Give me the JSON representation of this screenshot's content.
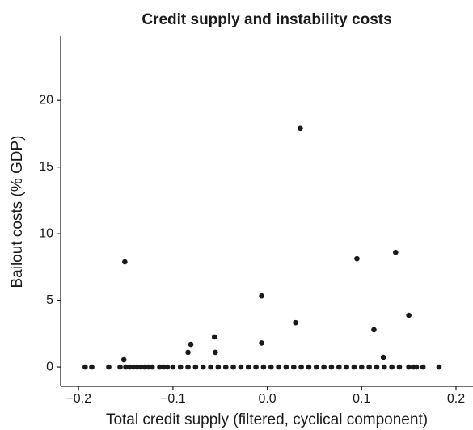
{
  "chart_data": {
    "type": "scatter",
    "title": "Credit supply and instability costs",
    "x_label": "Total credit supply (filtered, cyclical component)",
    "y_label": "Bailout costs (% GDP)",
    "color": "#1a1a1a",
    "xlim": [
      -0.219,
      0.218
    ],
    "ylim": [
      -1.45,
      24.8
    ],
    "xticks": [
      {
        "value": -0.2,
        "label": "−0.2"
      },
      {
        "value": -0.1,
        "label": "−0.1"
      },
      {
        "value": 0,
        "label": "0.0"
      },
      0.1,
      0.2
    ],
    "yticks": [
      0,
      5,
      10,
      15,
      20
    ],
    "x": [
      -0.151,
      -0.152,
      -0.084,
      -0.081,
      -0.056,
      -0.055,
      -0.006,
      -0.006,
      0.03,
      0.035,
      0.095,
      0.136,
      0.15,
      0.113,
      0.123,
      -0.193,
      -0.186,
      -0.168,
      -0.156,
      -0.15,
      -0.146,
      -0.142,
      -0.138,
      -0.134,
      -0.13,
      -0.126,
      -0.122,
      -0.114,
      -0.11,
      -0.106,
      -0.1,
      -0.092,
      -0.084,
      -0.076,
      -0.068,
      -0.06,
      -0.052,
      -0.044,
      -0.036,
      -0.028,
      -0.02,
      -0.012,
      -0.004,
      0.004,
      0.012,
      0.02,
      0.028,
      0.036,
      0.044,
      0.052,
      0.06,
      0.068,
      0.076,
      0.084,
      0.092,
      0.1,
      0.108,
      0.116,
      0.124,
      0.132,
      0.14,
      0.15,
      0.155,
      0.158,
      0.165,
      0.182
    ],
    "values": [
      7.88,
      0.55,
      1.1,
      1.7,
      2.25,
      1.1,
      5.33,
      1.8,
      3.33,
      17.9,
      8.12,
      8.6,
      3.88,
      2.8,
      0.73,
      0,
      0,
      0,
      0,
      0,
      0,
      0,
      0,
      0,
      0,
      0,
      0,
      0,
      0,
      0,
      0,
      0,
      0,
      0,
      0,
      0,
      0,
      0,
      0,
      0,
      0,
      0,
      0,
      0,
      0,
      0,
      0,
      0,
      0,
      0,
      0,
      0,
      0,
      0,
      0,
      0,
      0,
      0,
      0,
      0,
      0,
      0,
      0,
      0,
      0,
      0
    ]
  }
}
